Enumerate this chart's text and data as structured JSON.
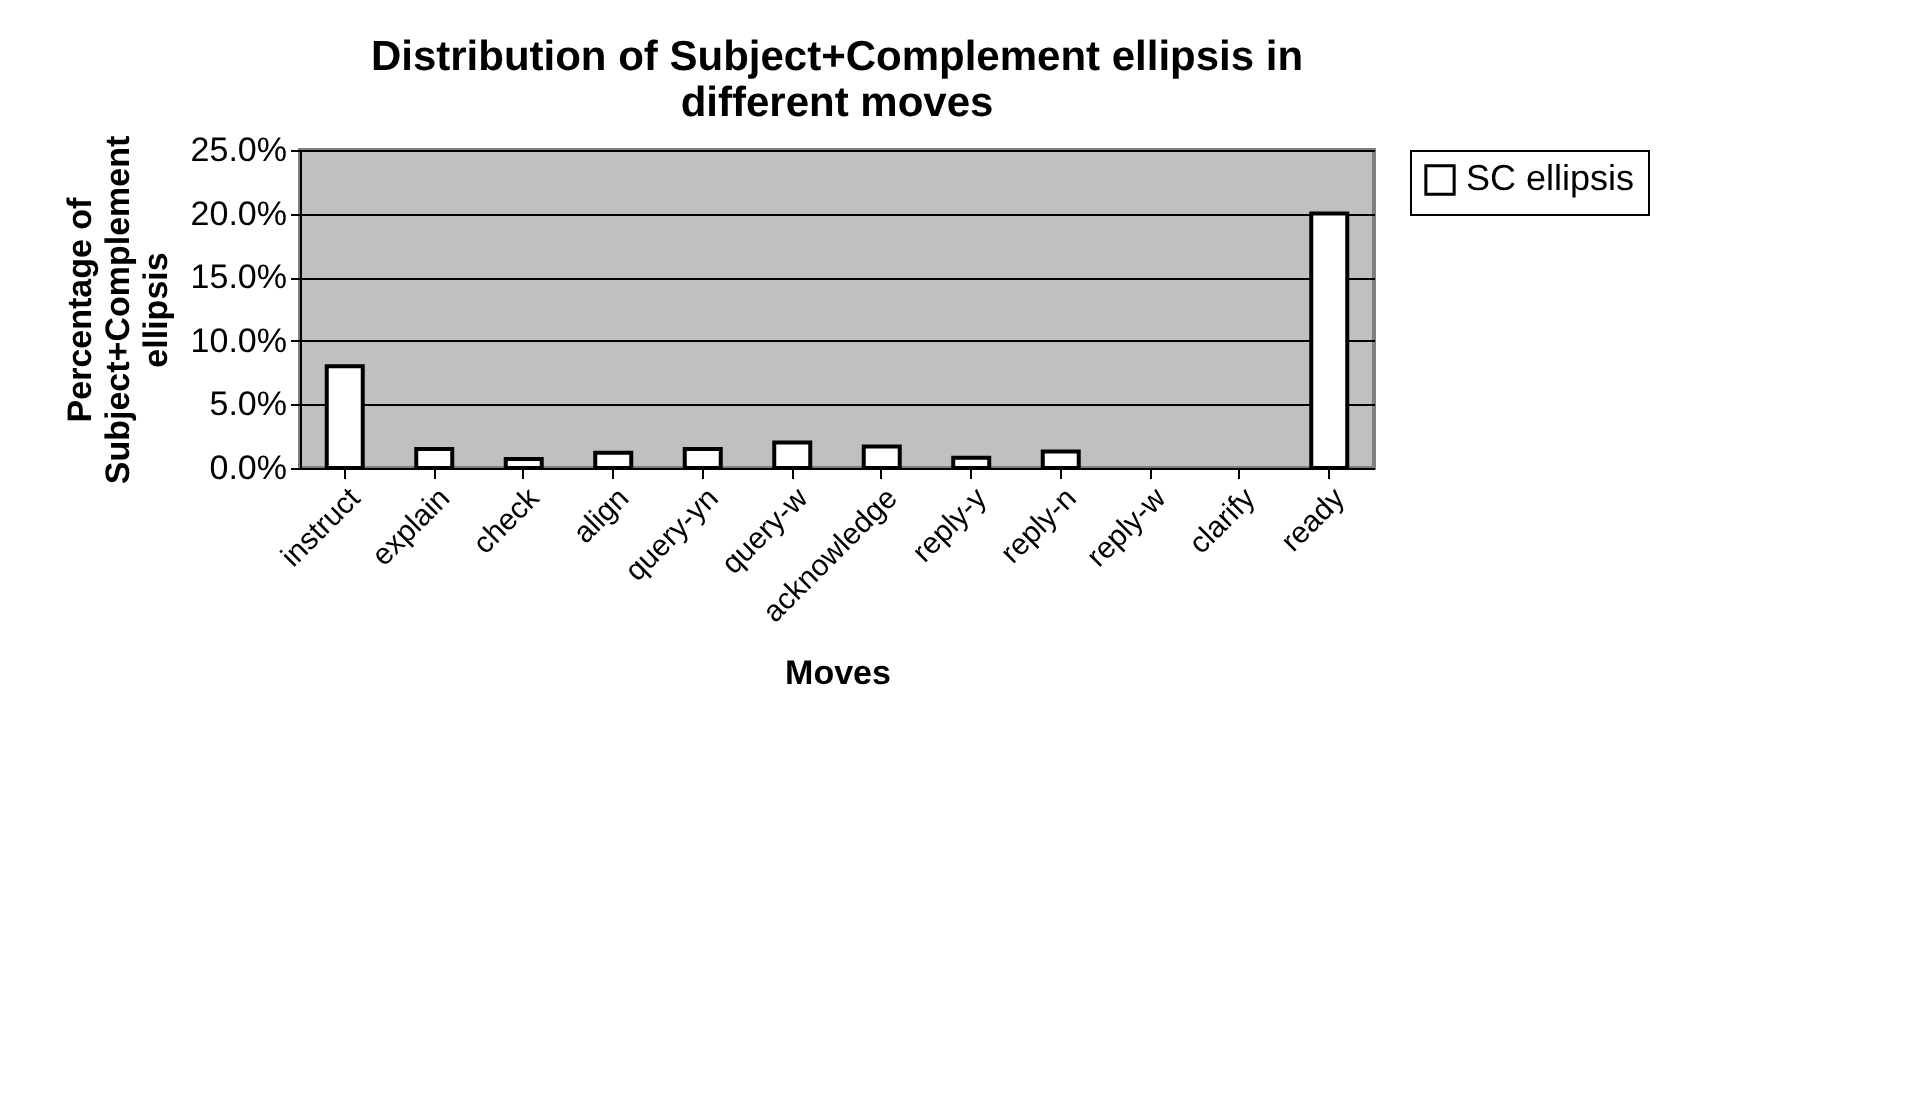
{
  "chart_data": {
    "type": "bar",
    "title": [
      "Distribution of Subject+Complement ellipsis in",
      "different moves"
    ],
    "xlabel": "Moves",
    "ylabel": [
      "Percentage of",
      "Subject+Complement",
      "ellipsis"
    ],
    "categories": [
      "instruct",
      "explain",
      "check",
      "align",
      "query-yn",
      "query-w",
      "acknowledge",
      "reply-y",
      "reply-n",
      "reply-w",
      "clarify",
      "ready"
    ],
    "series": [
      {
        "name": "SC ellipsis",
        "color": "#ffffff",
        "values": [
          8.0,
          1.5,
          0.7,
          1.2,
          1.5,
          2.0,
          1.7,
          0.8,
          1.3,
          0,
          0,
          20.0
        ]
      }
    ],
    "ylim": [
      0,
      25
    ],
    "yticks": [
      {
        "value": 0,
        "label": "0.0%"
      },
      {
        "value": 5,
        "label": "5.0%"
      },
      {
        "value": 10,
        "label": "10.0%"
      },
      {
        "value": 15,
        "label": "15.0%"
      },
      {
        "value": 20,
        "label": "20.0%"
      },
      {
        "value": 25,
        "label": "25.0%"
      }
    ],
    "grid": "y",
    "legend": "right"
  }
}
